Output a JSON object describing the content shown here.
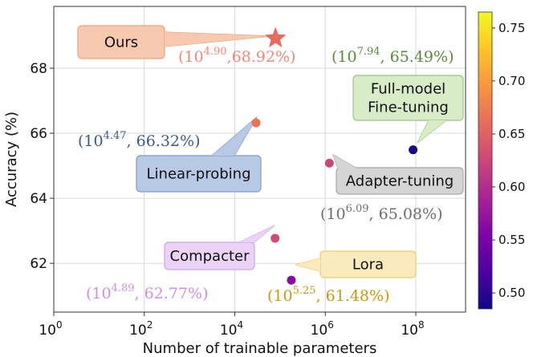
{
  "chart_data": {
    "type": "scatter",
    "title": "",
    "xlabel": "Number of trainable parameters",
    "ylabel": "Accuracy (%)",
    "xscale": "log10",
    "xlim_log10": [
      0,
      9.1
    ],
    "ylim": [
      60.5,
      69.9
    ],
    "x_tick_exponents": [
      0,
      2,
      4,
      6,
      8
    ],
    "x_tick_base": "10",
    "y_ticks": [
      "62",
      "64",
      "66",
      "68"
    ],
    "grid": true,
    "colorbar": {
      "colormap": "plasma",
      "range": [
        0.485,
        0.765
      ],
      "ticks": [
        "0.50",
        "0.55",
        "0.60",
        "0.65",
        "0.70",
        "0.75"
      ]
    },
    "points": [
      {
        "name": "Ours",
        "log10_params": 4.9,
        "accuracy": 68.92,
        "color_value": 0.66,
        "exp_label": "4.90",
        "value_label": ",68.92%)",
        "label_color": "#f4877a",
        "marker": "star",
        "box_color": "#f6c9b0",
        "box_border": "#e9a47e"
      },
      {
        "name": "Full-model Fine-tuning",
        "name_lines": [
          "Full-model",
          "Fine-tuning"
        ],
        "log10_params": 7.94,
        "accuracy": 65.49,
        "color_value": 0.49,
        "exp_label": "7.94",
        "value_label": ", 65.49%)",
        "label_color": "#5a8a3f",
        "marker": "circle",
        "box_color": "#d8ecc8",
        "box_border": "#99c484"
      },
      {
        "name": "Linear-probing",
        "log10_params": 4.47,
        "accuracy": 66.32,
        "color_value": 0.665,
        "exp_label": "4.47",
        "value_label": ", 66.32%)",
        "label_color": "#3b5a8a",
        "marker": "circle",
        "box_color": "#b8c9e6",
        "box_border": "#7f9bcc"
      },
      {
        "name": "Adapter-tuning",
        "log10_params": 6.09,
        "accuracy": 65.08,
        "color_value": 0.625,
        "exp_label": "6.09",
        "value_label": ", 65.08%)",
        "label_color": "#6e6e6e",
        "marker": "circle",
        "box_color": "#d5d5d5",
        "box_border": "#a8a8a8"
      },
      {
        "name": "Compacter",
        "log10_params": 4.89,
        "accuracy": 62.77,
        "color_value": 0.63,
        "exp_label": "4.89",
        "value_label": ", 62.77%)",
        "label_color": "#cf8ee4",
        "marker": "circle",
        "box_color": "#ead3f7",
        "box_border": "#cda4e6"
      },
      {
        "name": "Lora",
        "log10_params": 5.25,
        "accuracy": 61.48,
        "color_value": 0.565,
        "exp_label": "5.25",
        "value_label": ", 61.48%)",
        "label_color": "#c49a10",
        "marker": "circle",
        "box_color": "#fbeabc",
        "box_border": "#e9cc6b"
      }
    ]
  }
}
